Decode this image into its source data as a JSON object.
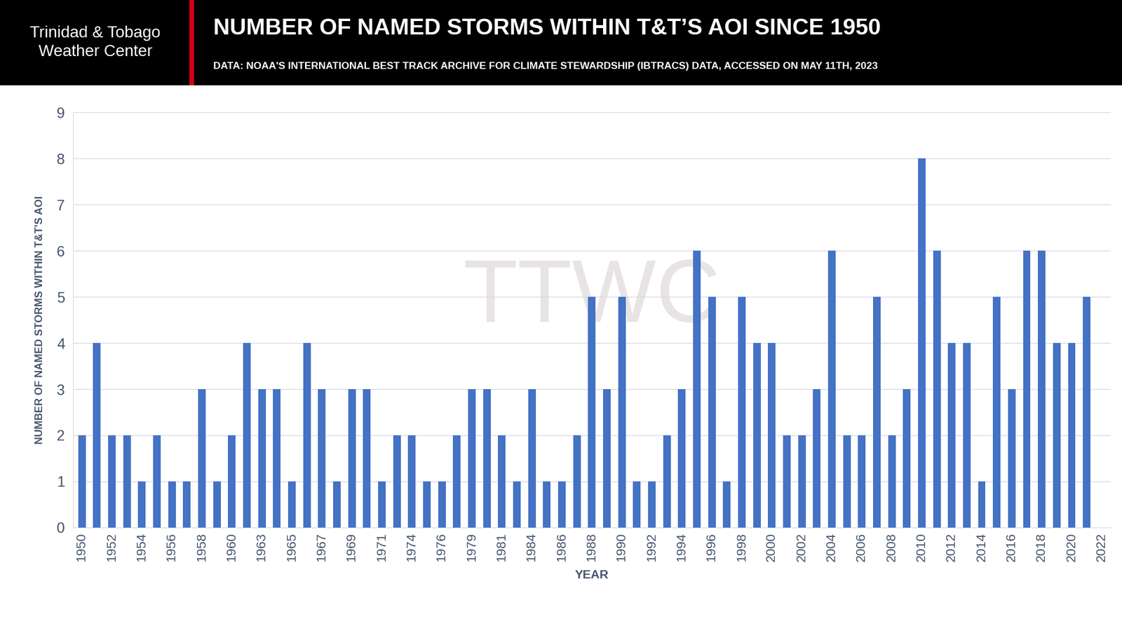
{
  "header": {
    "brand": "Trinidad & Tobago\nWeather Center",
    "watermark": "TTWC"
  },
  "chart_data": {
    "type": "bar",
    "title": "NUMBER OF NAMED STORMS WITHIN T&T’S AOI SINCE 1950",
    "subtitle": "DATA: NOAA'S INTERNATIONAL BEST TRACK ARCHIVE FOR CLIMATE STEWARDSHIP (IBTRACS) DATA, ACCESSED ON MAY 11TH, 2023",
    "x_label": "YEAR",
    "y_label": "NUMBER OF NAMED STORMS WITHIN T&T'S AOI",
    "categories": [
      "1950",
      null,
      "1952",
      null,
      "1954",
      null,
      "1956",
      null,
      "1958",
      null,
      "1960",
      null,
      "1963",
      null,
      "1965",
      null,
      "1967",
      null,
      "1969",
      null,
      "1971",
      null,
      "1974",
      null,
      "1976",
      null,
      "1979",
      null,
      "1981",
      null,
      "1984",
      null,
      "1986",
      null,
      "1988",
      null,
      "1990",
      null,
      "1992",
      null,
      "1994",
      null,
      "1996",
      null,
      "1998",
      null,
      "2000",
      null,
      "2002",
      null,
      "2004",
      null,
      "2006",
      null,
      "2008",
      null,
      "2010",
      null,
      "2012",
      null,
      "2014",
      null,
      "2016",
      null,
      "2018",
      null,
      "2020",
      null,
      "2022"
    ],
    "values": [
      2,
      4,
      2,
      2,
      1,
      2,
      1,
      1,
      3,
      1,
      2,
      4,
      3,
      3,
      1,
      4,
      3,
      1,
      3,
      3,
      1,
      2,
      2,
      1,
      1,
      2,
      3,
      3,
      2,
      1,
      3,
      1,
      1,
      2,
      5,
      3,
      5,
      1,
      1,
      2,
      3,
      6,
      5,
      1,
      5,
      4,
      4,
      2,
      2,
      3,
      6,
      2,
      2,
      5,
      2,
      3,
      8,
      6,
      4,
      4,
      1,
      5,
      3,
      6,
      6,
      4,
      4,
      5,
      0
    ],
    "color": "#4472c4",
    "ylim": [
      0,
      9
    ],
    "yticks": [
      0,
      1,
      2,
      3,
      4,
      5,
      6,
      7,
      8,
      9
    ],
    "grid": true
  }
}
